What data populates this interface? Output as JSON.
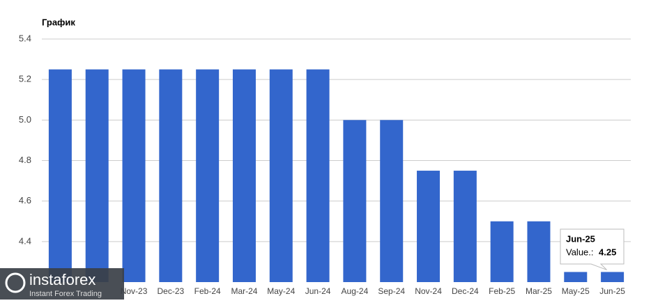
{
  "chart_data": {
    "type": "bar",
    "title": "График",
    "categories": [
      null,
      null,
      "Nov-23",
      "Dec-23",
      "Feb-24",
      "Mar-24",
      "May-24",
      "Jun-24",
      "Aug-24",
      "Sep-24",
      "Nov-24",
      "Dec-24",
      "Feb-25",
      "Mar-25",
      "May-25",
      "Jun-25"
    ],
    "values": [
      5.25,
      5.25,
      5.25,
      5.25,
      5.25,
      5.25,
      5.25,
      5.25,
      5.0,
      5.0,
      4.75,
      4.75,
      4.5,
      4.5,
      4.25,
      4.25
    ],
    "color": "#3366cc",
    "ylim": [
      4.2,
      5.4
    ],
    "yticks": [
      4.4,
      4.6,
      4.8,
      {
        "value": 5,
        "label": "5.0"
      },
      5.2,
      5.4
    ],
    "grid": true,
    "tooltip": {
      "label": "Value.:"
    }
  },
  "watermark": {
    "name": "instaforex",
    "tagline": "Instant Forex Trading"
  }
}
